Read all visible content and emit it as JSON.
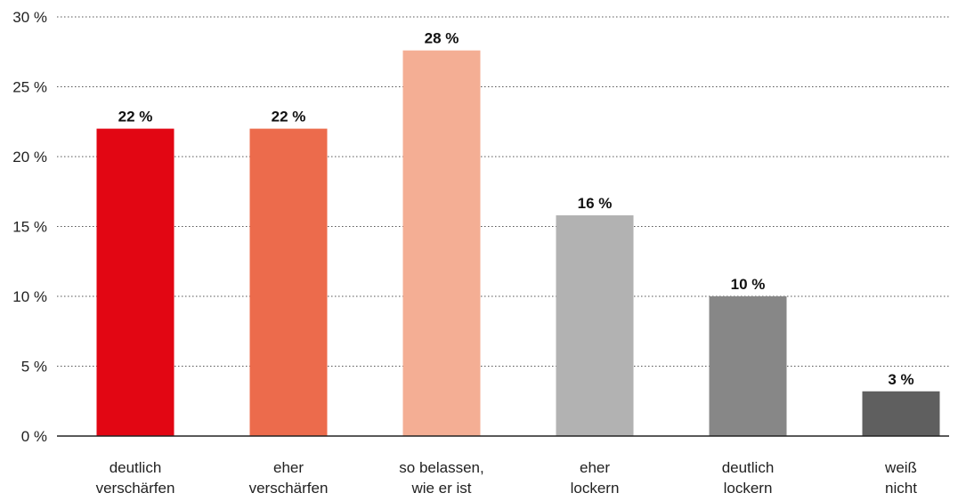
{
  "chart_data": {
    "type": "bar",
    "categories": [
      [
        "deutlich",
        "verschärfen"
      ],
      [
        "eher",
        "verschärfen"
      ],
      [
        "so belassen,",
        "wie er ist"
      ],
      [
        "eher",
        "lockern"
      ],
      [
        "deutlich",
        "lockern"
      ],
      [
        "weiß",
        "nicht"
      ]
    ],
    "values": [
      22,
      22,
      27.6,
      15.8,
      10,
      3.2
    ],
    "value_labels": [
      "22 %",
      "22 %",
      "28 %",
      "16 %",
      "10 %",
      "3 %"
    ],
    "colors": [
      "#e20613",
      "#ec6b4c",
      "#f4ae94",
      "#b2b2b2",
      "#878787",
      "#5f5f5f"
    ],
    "ylim": [
      0,
      30
    ],
    "yticks": [
      0,
      5,
      10,
      15,
      20,
      25,
      30
    ],
    "ytick_labels": [
      "0 %",
      "5 %",
      "10 %",
      "15 %",
      "20 %",
      "25 %",
      "30 %"
    ],
    "grid": true,
    "title": "",
    "xlabel": "",
    "ylabel": ""
  }
}
